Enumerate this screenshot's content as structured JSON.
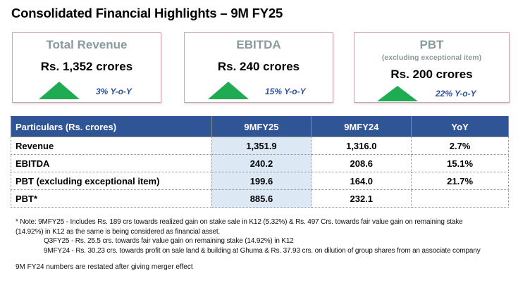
{
  "title": "Consolidated Financial Highlights – 9M FY25",
  "cards": [
    {
      "title": "Total Revenue",
      "subtitle": "",
      "value": "Rs. 1,352 crores",
      "trend_icon": "up-triangle-icon",
      "yoy": "3% Y-o-Y"
    },
    {
      "title": "EBITDA",
      "subtitle": "",
      "value": "Rs. 240 crores",
      "trend_icon": "up-triangle-icon",
      "yoy": "15% Y-o-Y"
    },
    {
      "title": "PBT",
      "subtitle": "(excluding exceptional item)",
      "value": "Rs. 200 crores",
      "trend_icon": "up-triangle-icon",
      "yoy": "22% Y-o-Y"
    }
  ],
  "table": {
    "headers": [
      "Particulars (Rs. crores)",
      "9MFY25",
      "9MFY24",
      "YoY"
    ],
    "rows": [
      [
        "Revenue",
        "1,351.9",
        "1,316.0",
        "2.7%"
      ],
      [
        "EBITDA",
        "240.2",
        "208.6",
        "15.1%"
      ],
      [
        "PBT (excluding exceptional item)",
        "199.6",
        "164.0",
        "21.7%"
      ],
      [
        "PBT*",
        "885.6",
        "232.1",
        ""
      ]
    ]
  },
  "notes": {
    "line1": "* Note: 9MFY25 - Includes Rs. 189 crs towards realized gain on stake sale in K12 (5.32%) & Rs. 497 Crs. towards fair value gain on remaining stake",
    "line2": "(14.92%) in K12 as the same is being considered as financial asset.",
    "line3": "Q3FY25 - Rs. 25.5 crs. towards fair value gain on remaining stake (14.92%) in K12",
    "line4": "9MFY24 - Rs. 30.23 crs. towards profit on sale land & building at Ghuma & Rs. 37.93 crs. on dilution of group shares from an associate company",
    "restated": "9M FY24 numbers are restated after giving merger effect"
  },
  "colors": {
    "header_bg": "#2f5597",
    "highlight_col": "#dde8f5",
    "up_green": "#1fab52",
    "yoy_text": "#2f4f9c",
    "card_title": "#8a9a9c"
  }
}
